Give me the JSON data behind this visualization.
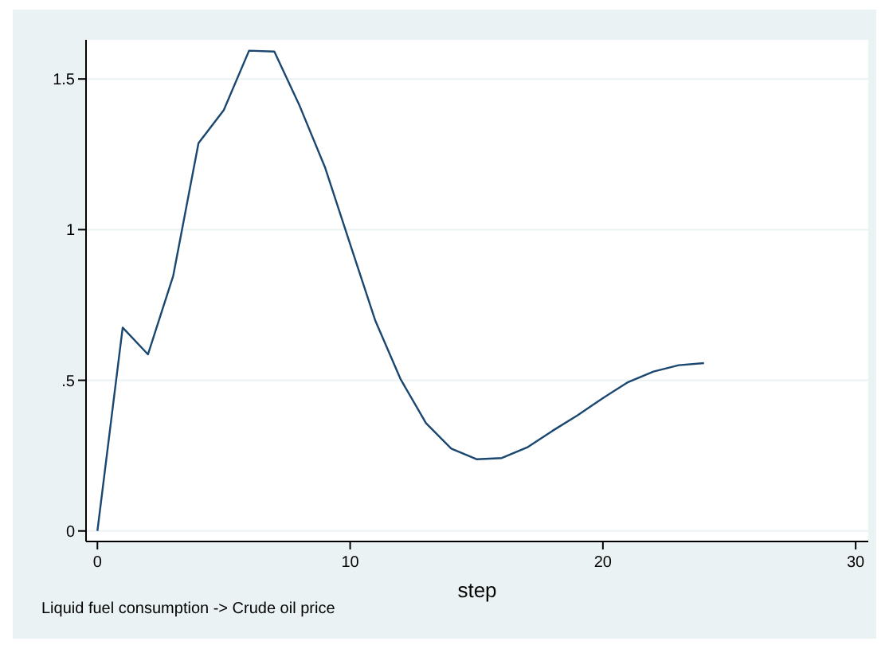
{
  "chart_data": {
    "type": "line",
    "xlabel": "step",
    "annotations": [
      "Liquid fuel consumption -> Crude oil price"
    ],
    "x": [
      0,
      1,
      2,
      3,
      4,
      5,
      6,
      7,
      8,
      9,
      10,
      11,
      12,
      13,
      14,
      15,
      16,
      17,
      18,
      19,
      20,
      21,
      22,
      23,
      24
    ],
    "series": [
      {
        "color": "#1a476f",
        "values": [
          0,
          0.675,
          0.586,
          0.847,
          1.287,
          1.397,
          1.594,
          1.591,
          1.411,
          1.208,
          0.952,
          0.697,
          0.503,
          0.358,
          0.273,
          0.238,
          0.242,
          0.277,
          0.332,
          0.384,
          0.441,
          0.494,
          0.529,
          0.55,
          0.557
        ]
      }
    ],
    "xlim": [
      -0.45,
      30.5
    ],
    "ylim": [
      -0.035,
      1.63
    ],
    "xticks": [
      0,
      10,
      20,
      30
    ],
    "yticks": [
      0,
      {
        "value": 0.5,
        "label": ".5"
      },
      1,
      1.5
    ],
    "grid": "y",
    "marker": "none",
    "line_style": "solid"
  }
}
